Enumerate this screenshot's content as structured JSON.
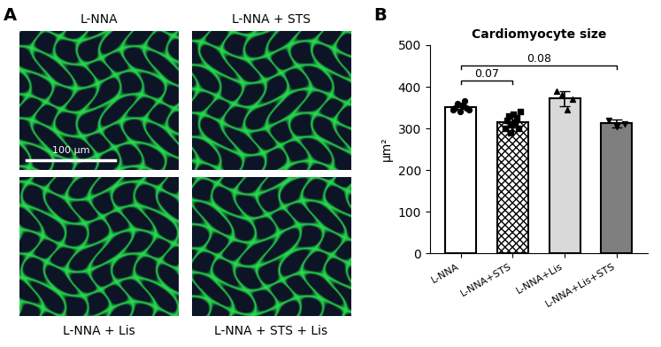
{
  "panel_a": {
    "letter": "A",
    "images": [
      "L-NNA",
      "L-NNA + STS",
      "L-NNA + Lis",
      "L-NNA + STS + Lis"
    ],
    "scale_bar": "100 μm"
  },
  "panel_b": {
    "letter": "B"
  },
  "chart_data": {
    "type": "bar",
    "title": "Cardiomyocyte size",
    "y_label": "μm²",
    "categories": [
      "L-NNA",
      "L-NNA+STS",
      "L-NNA+Lis",
      "L-NNA+Lis+STS"
    ],
    "values": [
      352,
      316,
      372,
      312
    ],
    "errors": [
      6,
      13,
      18,
      10
    ],
    "colors": [
      "#ffffff",
      "#ffffff",
      "#d9d9d9",
      "#7f7f7f"
    ],
    "points": [
      [
        345,
        350,
        360,
        340,
        355,
        365,
        350,
        345
      ],
      [
        300,
        320,
        330,
        290,
        310,
        335,
        315,
        325,
        300,
        340
      ],
      [
        390,
        380,
        345,
        370
      ],
      [
        320,
        305,
        310
      ]
    ],
    "comparisons": [
      {
        "from": 0,
        "to": 1,
        "label": "0.07"
      },
      {
        "from": 0,
        "to": 3,
        "label": "0.08"
      }
    ],
    "ylim": [
      0,
      500
    ],
    "yticks": [
      0,
      100,
      200,
      300,
      400,
      500
    ]
  }
}
